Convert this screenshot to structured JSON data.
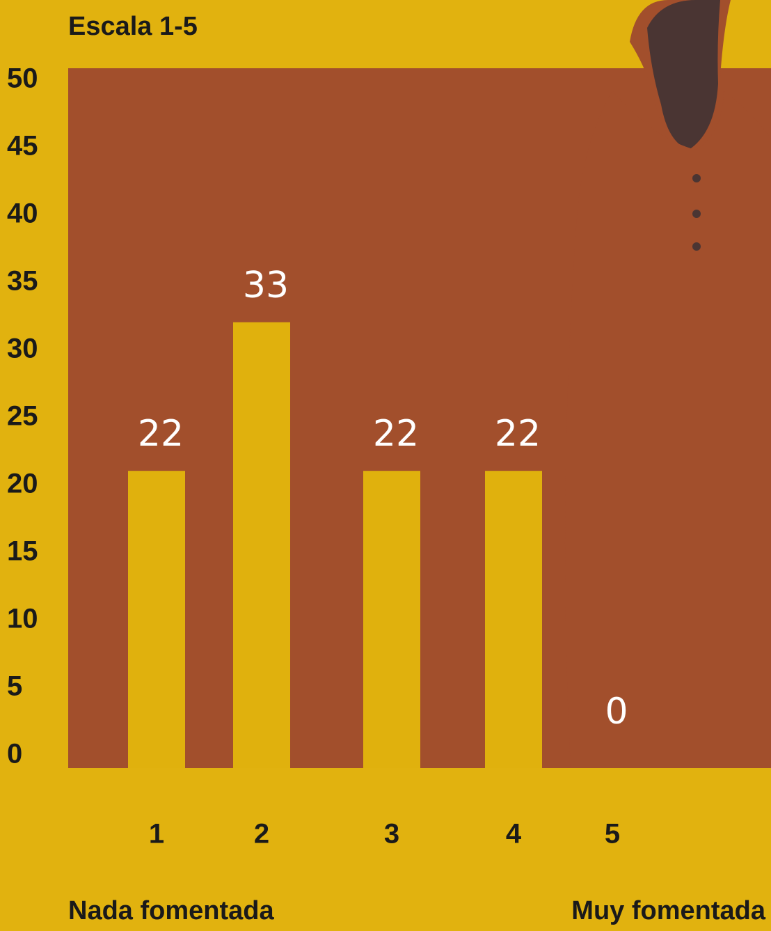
{
  "chart_data": {
    "type": "bar",
    "title": "Escala 1-5",
    "categories": [
      "1",
      "2",
      "3",
      "4",
      "5"
    ],
    "values": [
      22,
      33,
      22,
      22,
      0
    ],
    "color": "#e0b10d",
    "ylim": [
      0,
      50
    ],
    "yticks": [
      0,
      5,
      10,
      15,
      20,
      25,
      30,
      35,
      40,
      45,
      50
    ],
    "annotations": [
      "Nada fomentada",
      "Muy fomentada"
    ]
  }
}
